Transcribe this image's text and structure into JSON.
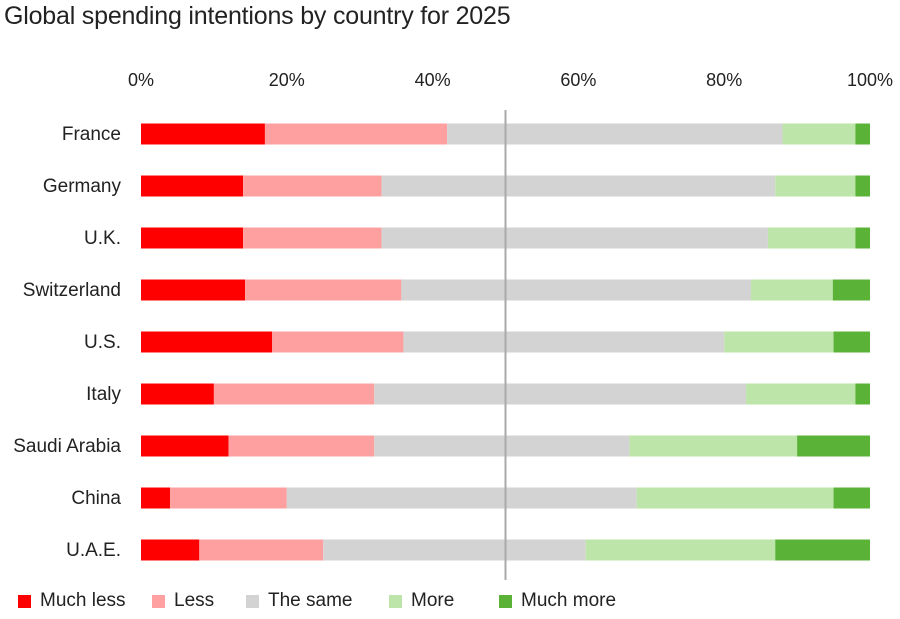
{
  "chart_data": {
    "type": "bar",
    "orientation": "horizontal",
    "stacked": true,
    "title": "Global spending intentions by country for 2025",
    "x_ticks": [
      "0%",
      "20%",
      "40%",
      "60%",
      "80%",
      "100%"
    ],
    "xlim": [
      0,
      100
    ],
    "reference_line": 50,
    "categories": [
      "France",
      "Germany",
      "U.K.",
      "Switzerland",
      "U.S.",
      "Italy",
      "Saudi Arabia",
      "China",
      "U.A.E."
    ],
    "series": [
      {
        "name": "Much less",
        "color": "#ff0000",
        "values": [
          17,
          14,
          14,
          14,
          18,
          10,
          12,
          4,
          8
        ]
      },
      {
        "name": "Less",
        "color": "#ffa0a0",
        "values": [
          25,
          19,
          19,
          21,
          18,
          22,
          20,
          16,
          17
        ]
      },
      {
        "name": "The same",
        "color": "#d3d3d3",
        "values": [
          46,
          54,
          53,
          47,
          44,
          51,
          35,
          48,
          36
        ]
      },
      {
        "name": "More",
        "color": "#bee5a9",
        "values": [
          10,
          11,
          12,
          11,
          15,
          15,
          23,
          27,
          26
        ]
      },
      {
        "name": "Much more",
        "color": "#5ab336",
        "values": [
          2,
          2,
          2,
          5,
          5,
          2,
          10,
          5,
          13
        ]
      }
    ]
  }
}
